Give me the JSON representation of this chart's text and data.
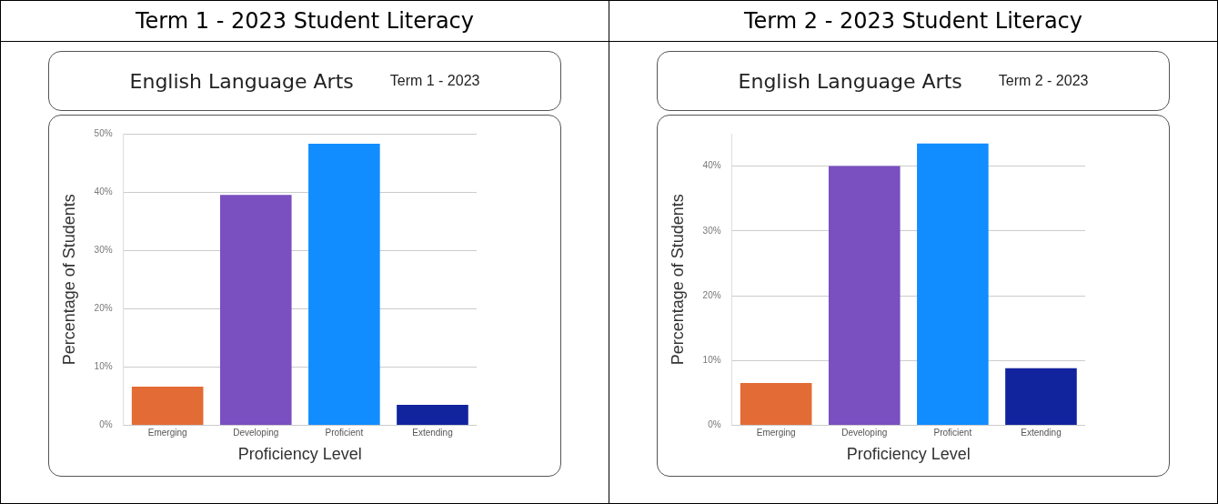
{
  "chart_data": [
    {
      "type": "bar",
      "title": "Term 1 - 2023 Student Literacy",
      "subtitle": "English Language Arts",
      "annotations": [
        "Term 1 - 2023"
      ],
      "xlabel": "Proficiency Level",
      "ylabel": "Percentage of Students",
      "categories": [
        "Emerging",
        "Developing",
        "Proficient",
        "Extending"
      ],
      "values": [
        6.6,
        39.5,
        48.3,
        3.5
      ],
      "colors": [
        "#e36b35",
        "#7a4fc0",
        "#118dff",
        "#12239e"
      ],
      "ylim": [
        0,
        50
      ],
      "yticks": [
        {
          "value": 0,
          "label": "0%"
        },
        {
          "value": 10,
          "label": "10%"
        },
        {
          "value": 20,
          "label": "20%"
        },
        {
          "value": 30,
          "label": "30%"
        },
        {
          "value": 40,
          "label": "40%"
        },
        {
          "value": 50,
          "label": "50%"
        }
      ],
      "grid": "y",
      "legend": false
    },
    {
      "type": "bar",
      "title": "Term 2 - 2023 Student Literacy",
      "subtitle": "English Language Arts",
      "annotations": [
        "Term 2 - 2023"
      ],
      "xlabel": "Proficiency Level",
      "ylabel": "Percentage of Students",
      "categories": [
        "Emerging",
        "Developing",
        "Proficient",
        "Extending"
      ],
      "values": [
        6.5,
        40.0,
        43.5,
        8.8
      ],
      "colors": [
        "#e36b35",
        "#7a4fc0",
        "#118dff",
        "#12239e"
      ],
      "ylim": [
        0,
        45
      ],
      "yticks": [
        {
          "value": 0,
          "label": "0%"
        },
        {
          "value": 10,
          "label": "10%"
        },
        {
          "value": 20,
          "label": "20%"
        },
        {
          "value": 30,
          "label": "30%"
        },
        {
          "value": 40,
          "label": "40%"
        }
      ],
      "grid": "y",
      "legend": false
    }
  ]
}
